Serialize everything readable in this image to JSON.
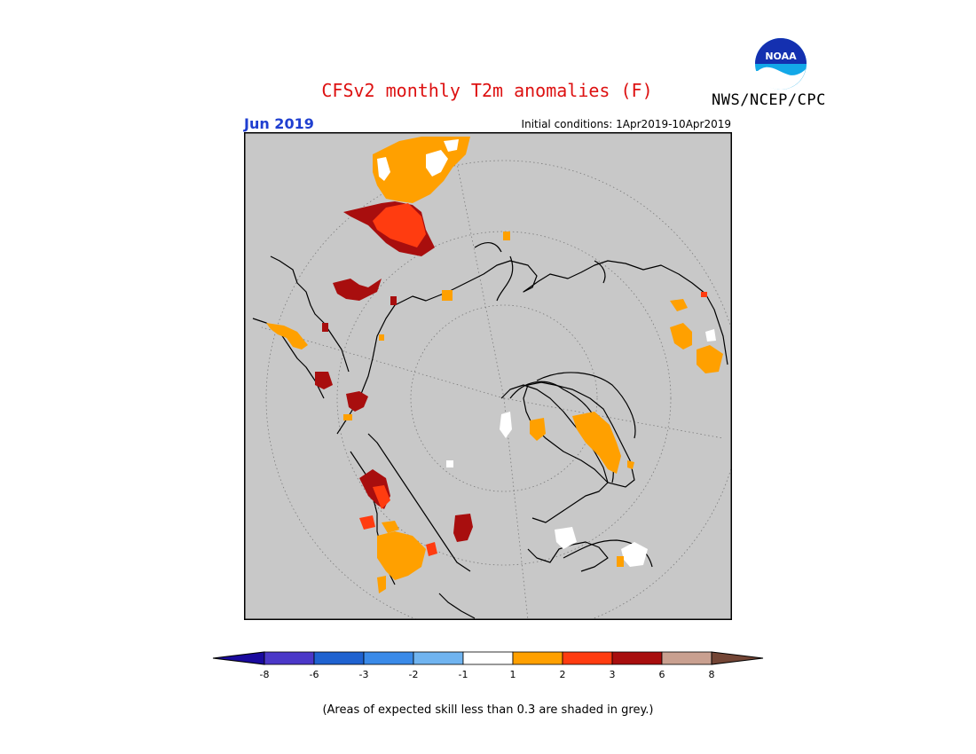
{
  "title": "CFSv2 monthly T2m anomalies (F)",
  "agency": "NWS/NCEP/CPC",
  "logo_text": "NOAA",
  "target_month": "Jun 2019",
  "initial_conditions": "Initial conditions: 1Apr2019-10Apr2019",
  "skill_note": "(Areas of expected skill less than 0.3 are shaded in grey.)",
  "colors": {
    "title": "#dd1111",
    "month": "#1f3fd0",
    "skill_grey": "#c8c8c8",
    "coast": "#000000"
  },
  "colorbar": {
    "boxes": [
      "#1a0a9e",
      "#4b38c8",
      "#1f62d0",
      "#3a8ae8",
      "#70b4f0",
      "#ffffff",
      "#ffa000",
      "#ff3c10",
      "#a80e0e",
      "#c9a090",
      "#734535"
    ],
    "ticks": [
      "-8",
      "-6",
      "-3",
      "-2",
      "-1",
      "1",
      "2",
      "3",
      "6",
      "8"
    ]
  },
  "regions": [
    {
      "name": "sub-bar-orange",
      "anomaly": "1 to 2"
    },
    {
      "name": "sub-bar-red",
      "anomaly": "2 to 3"
    },
    {
      "name": "sub-bar-darkred",
      "anomaly": "3 to 6"
    },
    {
      "name": "sub-bar-white",
      "anomaly": "-1 to 1"
    }
  ]
}
